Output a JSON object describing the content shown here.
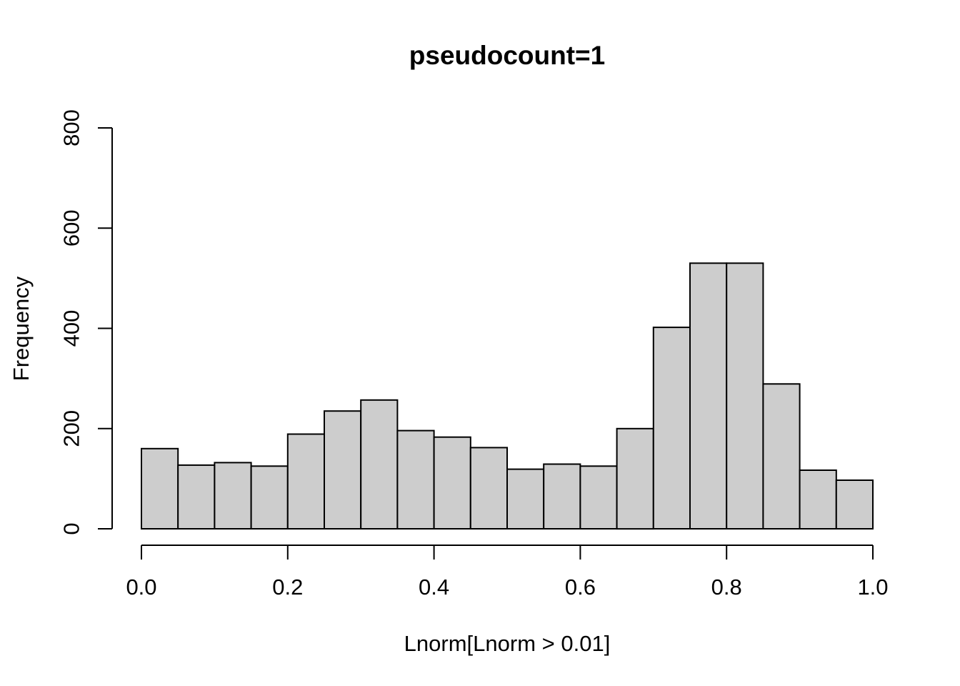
{
  "chart_data": {
    "type": "bar",
    "subtype": "histogram",
    "title": "pseudocount=1",
    "xlabel": "Lnorm[Lnorm > 0.01]",
    "ylabel": "Frequency",
    "bin_start": 0.0,
    "bin_width": 0.05,
    "bin_edges": [
      0.0,
      0.05,
      0.1,
      0.15,
      0.2,
      0.25,
      0.3,
      0.35,
      0.4,
      0.45,
      0.5,
      0.55,
      0.6,
      0.65,
      0.7,
      0.75,
      0.8,
      0.85,
      0.9,
      0.95,
      1.0
    ],
    "counts": [
      160,
      127,
      132,
      125,
      189,
      235,
      257,
      196,
      183,
      162,
      119,
      129,
      125,
      200,
      402,
      530,
      530,
      289,
      117,
      97
    ],
    "xlim": [
      0.0,
      1.0
    ],
    "ylim": [
      0,
      800
    ],
    "x_ticks": [
      0.0,
      0.2,
      0.4,
      0.6,
      0.8,
      1.0
    ],
    "x_tick_labels": [
      "0.0",
      "0.2",
      "0.4",
      "0.6",
      "0.8",
      "1.0"
    ],
    "y_ticks": [
      0,
      200,
      400,
      600,
      800
    ],
    "y_tick_labels": [
      "0",
      "200",
      "400",
      "600",
      "800"
    ],
    "grid": false,
    "legend": false,
    "colors": {
      "background": "#ffffff",
      "bar_fill": "#cdcdcd",
      "bar_stroke": "#000000",
      "axis": "#000000",
      "text": "#000000"
    }
  }
}
